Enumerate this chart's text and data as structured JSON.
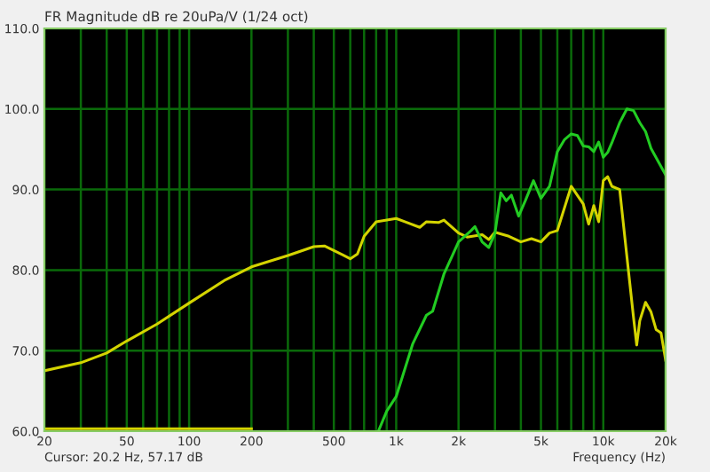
{
  "chart_data": {
    "type": "line",
    "title": "FR Magnitude dB re 20uPa/V (1/24 oct)",
    "xlabel": "Frequency (Hz)",
    "annotations": [
      "Cursor: 20.2 Hz, 57.17 dB"
    ],
    "log": "x",
    "grid": true,
    "legend": false,
    "xlim": [
      20,
      20000
    ],
    "ylim": [
      60,
      110
    ],
    "xticks": [
      20,
      {
        "value": 30,
        "label": null
      },
      {
        "value": 40,
        "label": null
      },
      50,
      {
        "value": 60,
        "label": null
      },
      {
        "value": 70,
        "label": null
      },
      {
        "value": 80,
        "label": null
      },
      {
        "value": 90,
        "label": null
      },
      100,
      200,
      {
        "value": 300,
        "label": null
      },
      {
        "value": 400,
        "label": null
      },
      500,
      {
        "value": 600,
        "label": null
      },
      {
        "value": 700,
        "label": null
      },
      {
        "value": 800,
        "label": null
      },
      {
        "value": 900,
        "label": null
      },
      {
        "value": 1000,
        "label": "1k"
      },
      {
        "value": 2000,
        "label": "2k"
      },
      {
        "value": 3000,
        "label": null
      },
      {
        "value": 4000,
        "label": null
      },
      {
        "value": 5000,
        "label": "5k"
      },
      {
        "value": 6000,
        "label": null
      },
      {
        "value": 7000,
        "label": null
      },
      {
        "value": 8000,
        "label": null
      },
      {
        "value": 9000,
        "label": null
      },
      {
        "value": 10000,
        "label": "10k"
      },
      {
        "value": 20000,
        "label": "20k"
      }
    ],
    "yticks": [
      {
        "value": 60,
        "label": "60.0"
      },
      {
        "value": 70,
        "label": "70.0"
      },
      {
        "value": 80,
        "label": "80.0"
      },
      {
        "value": 90,
        "label": "90.0"
      },
      {
        "value": 100,
        "label": "100.0"
      },
      {
        "value": 110,
        "label": "110.0"
      }
    ],
    "series": [
      {
        "color": "#d4d400",
        "x": [
          20,
          30,
          40,
          50,
          70,
          100,
          150,
          200,
          300,
          400,
          450,
          550,
          600,
          650,
          700,
          800,
          1000,
          1100,
          1300,
          1400,
          1600,
          1700,
          2000,
          2200,
          2600,
          2800,
          3000,
          3500,
          4000,
          4500,
          5000,
          5500,
          6000,
          7000,
          8000,
          8500,
          9000,
          9500,
          10000,
          10500,
          11000,
          12000,
          13000,
          14000,
          14500,
          15000,
          16000,
          17000,
          18000,
          19000,
          20000
        ],
        "values": [
          67.5,
          68.5,
          69.7,
          71.2,
          73.3,
          75.9,
          78.8,
          80.4,
          81.8,
          82.9,
          83.0,
          81.9,
          81.4,
          82.0,
          84.2,
          86.0,
          86.4,
          86.0,
          85.3,
          86.0,
          85.9,
          86.2,
          84.6,
          84.1,
          84.4,
          83.8,
          84.7,
          84.2,
          83.5,
          83.9,
          83.5,
          84.6,
          84.9,
          90.4,
          88.2,
          85.7,
          88.0,
          86.0,
          91.1,
          91.6,
          90.4,
          90.0,
          81.7,
          74.1,
          70.7,
          73.7,
          76.0,
          74.8,
          72.6,
          72.2,
          68.8
        ]
      },
      {
        "color": "#22cc22",
        "x": [
          820,
          900,
          1000,
          1200,
          1400,
          1500,
          1700,
          1800,
          2000,
          2300,
          2400,
          2600,
          2800,
          3000,
          3200,
          3400,
          3600,
          3900,
          4200,
          4600,
          5000,
          5500,
          6000,
          6500,
          7000,
          7500,
          8000,
          8500,
          9000,
          9500,
          10000,
          10500,
          11000,
          12000,
          13000,
          14000,
          15000,
          16000,
          17000,
          20000
        ],
        "values": [
          60.0,
          62.5,
          64.3,
          70.8,
          74.4,
          74.9,
          79.5,
          80.9,
          83.5,
          84.9,
          85.4,
          83.5,
          82.8,
          84.6,
          89.6,
          88.6,
          89.3,
          86.7,
          88.6,
          91.1,
          88.9,
          90.4,
          94.7,
          96.2,
          96.9,
          96.7,
          95.4,
          95.3,
          94.7,
          95.9,
          94.0,
          94.6,
          95.8,
          98.3,
          100.0,
          99.8,
          98.3,
          97.2,
          95.1,
          91.8
        ]
      },
      {
        "color": "#d4d400",
        "x": [
          20,
          200
        ],
        "values": [
          60.3,
          60.3
        ]
      }
    ]
  }
}
